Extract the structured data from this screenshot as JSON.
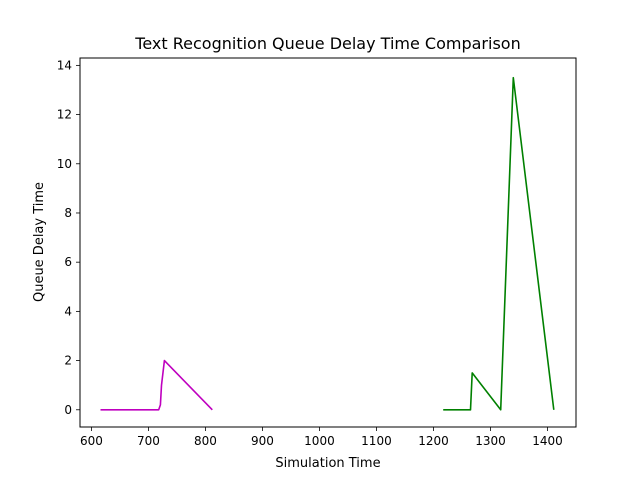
{
  "chart_data": {
    "type": "line",
    "title": "Text Recognition Queue Delay Time Comparison",
    "xlabel": "Simulation Time",
    "ylabel": "Queue Delay Time",
    "xlim": [
      580,
      1450
    ],
    "ylim": [
      -0.7,
      14.3
    ],
    "xticks": [
      600,
      700,
      800,
      900,
      1000,
      1100,
      1200,
      1300,
      1400
    ],
    "yticks": [
      0,
      2,
      4,
      6,
      8,
      10,
      12,
      14
    ],
    "grid": false,
    "legend": "none",
    "series": [
      {
        "color": "#bf00bf",
        "points": [
          [
            616,
            0
          ],
          [
            718,
            0
          ],
          [
            721,
            0.2
          ],
          [
            723,
            1.0
          ],
          [
            728,
            2.0
          ],
          [
            812,
            0
          ]
        ]
      },
      {
        "color": "#008000",
        "points": [
          [
            1217,
            0
          ],
          [
            1265,
            0
          ],
          [
            1268,
            1.5
          ],
          [
            1318,
            0
          ],
          [
            1340,
            13.5
          ],
          [
            1411,
            0
          ]
        ]
      }
    ]
  }
}
